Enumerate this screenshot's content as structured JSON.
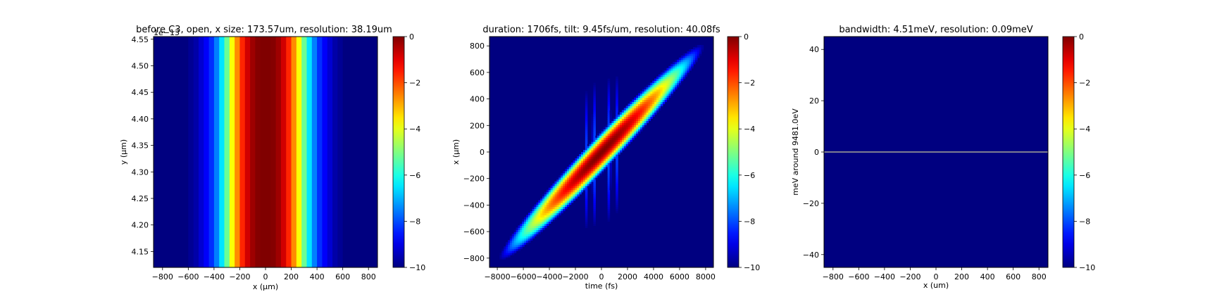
{
  "chart_data": [
    {
      "type": "heatmap",
      "title": "before C3, open, x size: 173.57um, resolution: 38.19um",
      "xlabel": "x (μm)",
      "ylabel": "y (μm)",
      "xlim": [
        -870,
        870
      ],
      "ylim": [
        4.12,
        4.555
      ],
      "y_offset_label": "1e−13",
      "xticks": [
        -800,
        -600,
        -400,
        -200,
        0,
        200,
        400,
        600,
        800
      ],
      "yticks": [
        4.15,
        4.2,
        4.25,
        4.3,
        4.35,
        4.4,
        4.45,
        4.5,
        4.55
      ],
      "ytick_labels": [
        "4.15",
        "4.20",
        "4.25",
        "4.30",
        "4.35",
        "4.40",
        "4.45",
        "4.50",
        "4.55"
      ],
      "pattern": "vertical_band",
      "bins_x": [
        -820,
        -780,
        -740,
        -700,
        -660,
        -620,
        -580,
        -540,
        -500,
        -460,
        -420,
        -380,
        -340,
        -300,
        -260,
        -220,
        -180,
        -140,
        -100,
        -60,
        -20,
        20,
        60,
        100,
        140,
        180,
        220,
        260,
        300,
        340,
        380,
        420,
        460,
        500,
        540,
        580,
        620,
        660,
        700,
        740,
        780,
        820
      ],
      "bin_width": 40,
      "values": [
        -10,
        -10,
        -10,
        -10,
        -10,
        -10,
        -9.8,
        -9.6,
        -9.2,
        -8.8,
        -8.3,
        -7.5,
        -6.5,
        -5.2,
        -3.8,
        -2.6,
        -1.6,
        -0.8,
        -0.3,
        -0.05,
        0,
        0,
        -0.05,
        -0.3,
        -0.8,
        -1.6,
        -2.6,
        -3.8,
        -5.2,
        -6.5,
        -7.5,
        -8.3,
        -8.8,
        -9.2,
        -9.6,
        -9.8,
        -10,
        -10,
        -10,
        -10,
        -10,
        -10
      ],
      "colorbar": {
        "min": -10,
        "max": 0,
        "ticks": [
          0,
          -2,
          -4,
          -6,
          -8,
          -10
        ],
        "tick_labels": [
          "0",
          "−2",
          "−4",
          "−6",
          "−8",
          "−10"
        ]
      }
    },
    {
      "type": "heatmap",
      "title": "duration: 1706fs, tilt: 9.45fs/um, resolution: 40.08fs",
      "xlabel": "time (fs)",
      "ylabel": "x (μm)",
      "xlim": [
        -8600,
        8600
      ],
      "ylim": [
        -870,
        870
      ],
      "xticks": [
        -8000,
        -6000,
        -4000,
        -2000,
        0,
        2000,
        4000,
        6000,
        8000
      ],
      "xtick_labels": [
        "−8000",
        "−6000",
        "−4000",
        "−2000",
        "0",
        "2000",
        "4000",
        "6000",
        "8000"
      ],
      "yticks": [
        -800,
        -600,
        -400,
        -200,
        0,
        200,
        400,
        600,
        800
      ],
      "ytick_labels": [
        "−800",
        "−600",
        "−400",
        "−200",
        "0",
        "200",
        "400",
        "600",
        "800"
      ],
      "pattern": "tilted_pulse",
      "blobs": [
        {
          "t": 0,
          "x": 0,
          "st": 380,
          "sx": 200,
          "tilt_fs_per_um": 9.45,
          "level": 0
        },
        {
          "t": -2300,
          "x": -240,
          "st": 260,
          "sx": 50,
          "tilt_fs_per_um": 9.45,
          "level": -5.5
        },
        {
          "t": 2300,
          "x": 240,
          "st": 260,
          "sx": 50,
          "tilt_fs_per_um": 9.45,
          "level": -5.5
        },
        {
          "t": -1200,
          "x": -60,
          "st": 60,
          "sx": 300,
          "tilt_fs_per_um": 0,
          "level": -8
        },
        {
          "t": -600,
          "x": -20,
          "st": 60,
          "sx": 300,
          "tilt_fs_per_um": 0,
          "level": -7.5
        },
        {
          "t": 600,
          "x": 20,
          "st": 60,
          "sx": 300,
          "tilt_fs_per_um": 0,
          "level": -7.5
        },
        {
          "t": 1200,
          "x": 60,
          "st": 60,
          "sx": 300,
          "tilt_fs_per_um": 0,
          "level": -8
        }
      ],
      "colorbar": {
        "min": -10,
        "max": 0,
        "ticks": [
          0,
          -2,
          -4,
          -6,
          -8,
          -10
        ],
        "tick_labels": [
          "0",
          "−2",
          "−4",
          "−6",
          "−8",
          "−10"
        ]
      }
    },
    {
      "type": "heatmap",
      "title": "bandwidth: 4.51meV, resolution: 0.09meV",
      "xlabel": "x (um)",
      "ylabel": "meV around 9481.0eV",
      "xlim": [
        -870,
        870
      ],
      "ylim": [
        -45,
        45
      ],
      "xticks": [
        -800,
        -600,
        -400,
        -200,
        0,
        200,
        400,
        600,
        800
      ],
      "xtick_labels": [
        "−800",
        "−600",
        "−400",
        "−200",
        "0",
        "200",
        "400",
        "600",
        "800"
      ],
      "yticks": [
        -40,
        -20,
        0,
        20,
        40
      ],
      "ytick_labels": [
        "−40",
        "−20",
        "0",
        "20",
        "40"
      ],
      "pattern": "horizontal_line",
      "line_y": 0,
      "line_color": "#c8c89a",
      "colorbar": {
        "min": -10,
        "max": 0,
        "ticks": [
          0,
          -2,
          -4,
          -6,
          -8,
          -10
        ],
        "tick_labels": [
          "0",
          "−2",
          "−4",
          "−6",
          "−8",
          "−10"
        ]
      }
    }
  ],
  "colors": {
    "background": "#00008f",
    "text": "#000000",
    "axis": "#000000"
  }
}
